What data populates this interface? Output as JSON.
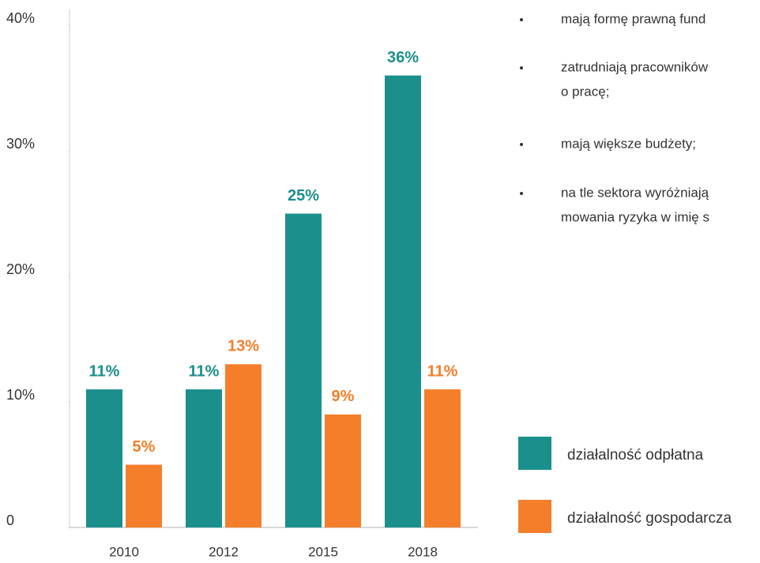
{
  "chart_data": {
    "type": "bar",
    "categories": [
      "2010",
      "2012",
      "2015",
      "2018"
    ],
    "series": [
      {
        "name": "działalność odpłatna",
        "color": "#1b8f8c",
        "values": [
          11,
          11,
          25,
          36
        ],
        "value_labels": [
          "11%",
          "11%",
          "25%",
          "36%"
        ]
      },
      {
        "name": "działalność gospodarcza",
        "color": "#f47e2a",
        "values": [
          5,
          13,
          9,
          11
        ],
        "value_labels": [
          "5%",
          "13%",
          "9%",
          "11%"
        ]
      }
    ],
    "ylim": [
      0,
      40
    ],
    "yticks": [
      0,
      {
        "value": 10,
        "label": "10%"
      },
      {
        "value": 20,
        "label": "20%"
      },
      {
        "value": 30,
        "label": "30%"
      },
      {
        "value": 40,
        "label": "40%"
      }
    ],
    "notes": [
      [
        "mają formę prawną fund"
      ],
      [
        "zatrudniają pracowników",
        "o pracę;"
      ],
      [
        "mają większe budżety;"
      ],
      [
        "na tle sektora wyróżniają",
        "mowania ryzyka w imię s"
      ]
    ]
  }
}
